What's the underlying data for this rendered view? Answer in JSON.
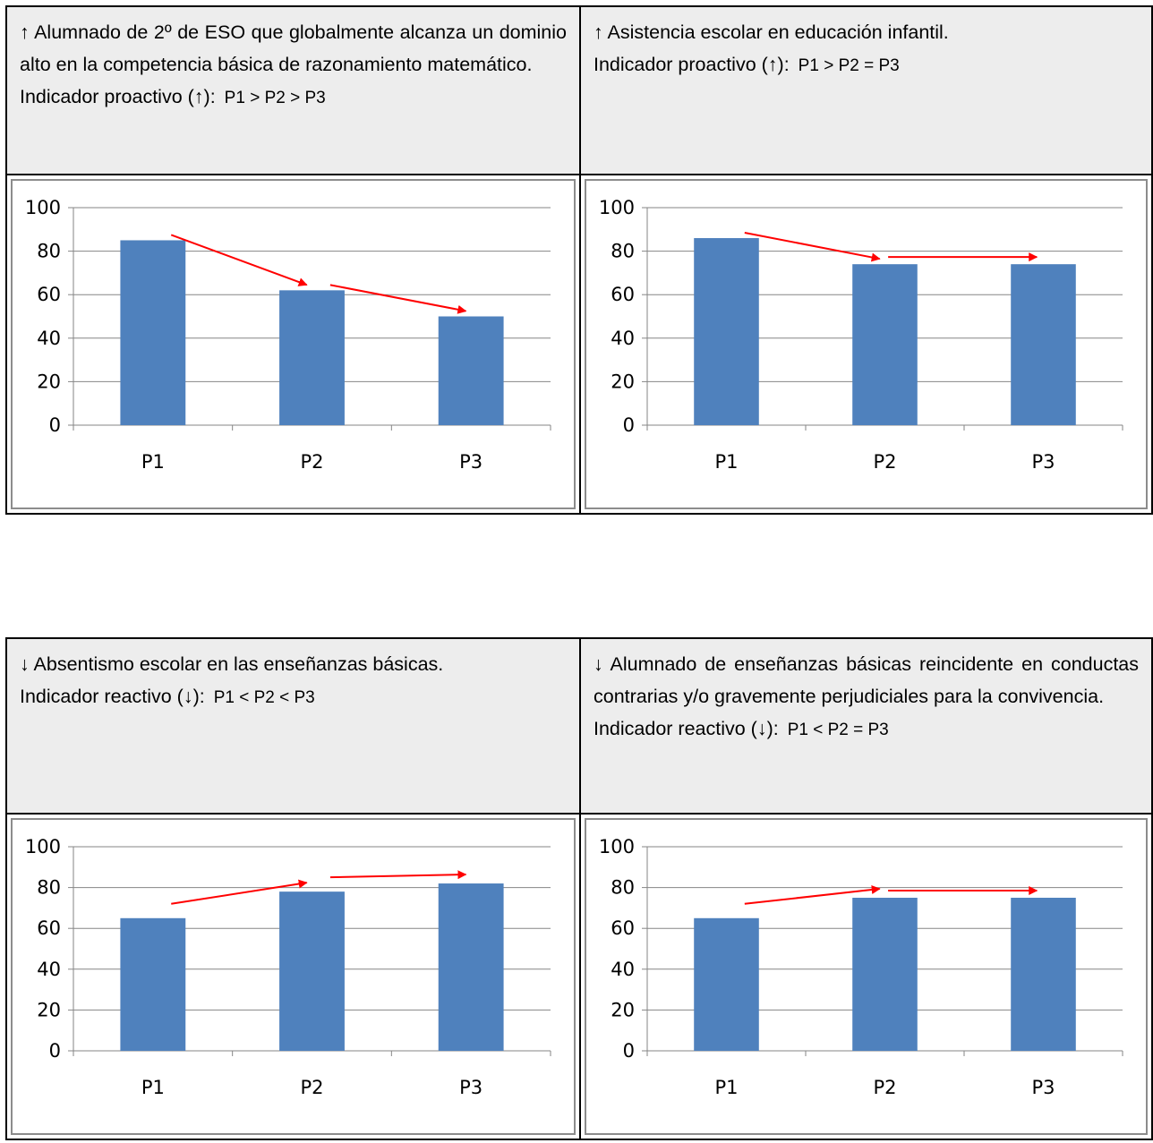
{
  "panels": [
    {
      "description": "↑ Alumnado de 2º de ESO que globalmente alcanza un dominio alto en la competencia básica de razonamiento matemático.",
      "indicator_label": "Indicador proactivo (↑):",
      "relation": "P1 > P2 > P3"
    },
    {
      "description": "↑ Asistencia escolar en educación infantil.",
      "indicator_label": "Indicador proactivo (↑):",
      "relation": "P1 > P2 = P3"
    },
    {
      "description": "↓ Absentismo escolar en las enseñanzas básicas.",
      "indicator_label": "Indicador reactivo (↓):",
      "relation": "P1 < P2 < P3"
    },
    {
      "description": "↓ Alumnado de enseñanzas básicas reincidente en conductas contrarias y/o gravemente perjudiciales para la convivencia.",
      "indicator_label": "Indicador reactivo (↓):",
      "relation": "P1 < P2 = P3"
    }
  ],
  "colors": {
    "bar": "#4f81bd",
    "arrow": "#ff0000",
    "grid": "#868686",
    "header_bg": "#ededed"
  },
  "chart_data": [
    {
      "type": "bar",
      "categories": [
        "P1",
        "P2",
        "P3"
      ],
      "values": [
        85,
        62,
        50
      ],
      "ylim": [
        0,
        100
      ],
      "yticks": [
        0,
        20,
        40,
        60,
        80,
        100
      ],
      "grid": true,
      "legend": "none",
      "annotations": [
        "arrow from P1 to P2 (decreasing)",
        "arrow from P2 to P3 (decreasing)"
      ]
    },
    {
      "type": "bar",
      "categories": [
        "P1",
        "P2",
        "P3"
      ],
      "values": [
        86,
        74,
        74
      ],
      "ylim": [
        0,
        100
      ],
      "yticks": [
        0,
        20,
        40,
        60,
        80,
        100
      ],
      "grid": true,
      "legend": "none",
      "annotations": [
        "arrow from P1 to P2 (decreasing)",
        "arrow from P2 to P3 (flat)"
      ]
    },
    {
      "type": "bar",
      "categories": [
        "P1",
        "P2",
        "P3"
      ],
      "values": [
        65,
        78,
        82
      ],
      "ylim": [
        0,
        100
      ],
      "yticks": [
        0,
        20,
        40,
        60,
        80,
        100
      ],
      "grid": true,
      "legend": "none",
      "annotations": [
        "arrow from P1 to P2 (increasing)",
        "arrow from P2 to P3 (increasing)"
      ]
    },
    {
      "type": "bar",
      "categories": [
        "P1",
        "P2",
        "P3"
      ],
      "values": [
        65,
        75,
        75
      ],
      "ylim": [
        0,
        100
      ],
      "yticks": [
        0,
        20,
        40,
        60,
        80,
        100
      ],
      "grid": true,
      "legend": "none",
      "annotations": [
        "arrow from P1 to P2 (increasing)",
        "arrow from P2 to P3 (flat)"
      ]
    }
  ]
}
